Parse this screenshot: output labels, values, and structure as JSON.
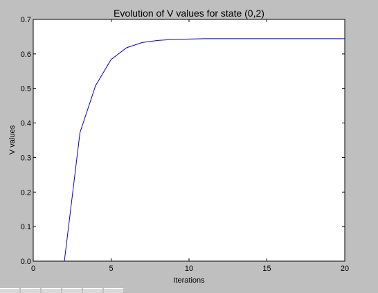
{
  "chart_data": {
    "type": "line",
    "title": "Evolution of V values for state (0,2)",
    "xlabel": "Iterations",
    "ylabel": "V values",
    "xlim": [
      0,
      20
    ],
    "ylim": [
      0,
      0.7
    ],
    "x_ticks": [
      0,
      5,
      10,
      15,
      20
    ],
    "y_ticks": [
      0.0,
      0.1,
      0.2,
      0.3,
      0.4,
      0.5,
      0.6,
      0.7
    ],
    "x_tick_labels": [
      "0",
      "5",
      "10",
      "15",
      "20"
    ],
    "y_tick_labels": [
      "0.0",
      "0.1",
      "0.2",
      "0.3",
      "0.4",
      "0.5",
      "0.6",
      "0.7"
    ],
    "grid": false,
    "series": [
      {
        "color": "#0000cc",
        "x": [
          2,
          3,
          4,
          5,
          6,
          7,
          8,
          9,
          10,
          11,
          12,
          13,
          14,
          15,
          16,
          17,
          18,
          19,
          20
        ],
        "y": [
          0.0,
          0.372,
          0.508,
          0.584,
          0.618,
          0.633,
          0.639,
          0.642,
          0.643,
          0.644,
          0.644,
          0.644,
          0.644,
          0.644,
          0.644,
          0.644,
          0.644,
          0.644,
          0.644
        ]
      }
    ]
  }
}
